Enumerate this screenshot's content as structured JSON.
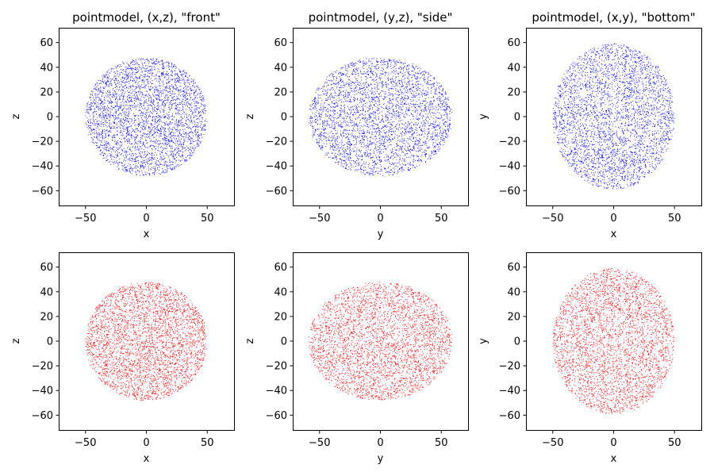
{
  "figure": {
    "background": "#ffffff"
  },
  "chart_data": [
    {
      "type": "scatter",
      "title": "pointmodel, (x,z), \"front\"",
      "xlabel": "x",
      "ylabel": "z",
      "xlim": [
        -72,
        72
      ],
      "ylim": [
        -72,
        72
      ],
      "xticks": [
        -50,
        0,
        50
      ],
      "yticks": [
        -60,
        -40,
        -20,
        0,
        20,
        40,
        60
      ],
      "grid": false,
      "color": "#0000ff",
      "point_cloud": {
        "center": [
          0,
          0
        ],
        "radius_x": 50,
        "radius_y": 48,
        "points": 3500,
        "seed": 11
      }
    },
    {
      "type": "scatter",
      "title": "pointmodel, (y,z), \"side\"",
      "xlabel": "y",
      "ylabel": "z",
      "xlim": [
        -72,
        72
      ],
      "ylim": [
        -72,
        72
      ],
      "xticks": [
        -50,
        0,
        50
      ],
      "yticks": [
        -60,
        -40,
        -20,
        0,
        20,
        40,
        60
      ],
      "grid": false,
      "color": "#0000ff",
      "point_cloud": {
        "center": [
          0,
          0
        ],
        "radius_x": 59,
        "radius_y": 48,
        "points": 3500,
        "seed": 23
      }
    },
    {
      "type": "scatter",
      "title": "pointmodel, (x,y), \"bottom\"",
      "xlabel": "x",
      "ylabel": "y",
      "xlim": [
        -72,
        72
      ],
      "ylim": [
        -72,
        72
      ],
      "xticks": [
        -50,
        0,
        50
      ],
      "yticks": [
        -60,
        -40,
        -20,
        0,
        20,
        40,
        60
      ],
      "grid": false,
      "color": "#0000ff",
      "point_cloud": {
        "center": [
          0,
          0
        ],
        "radius_x": 50,
        "radius_y": 59,
        "points": 3500,
        "seed": 37
      }
    },
    {
      "type": "scatter",
      "title": "",
      "xlabel": "x",
      "ylabel": "z",
      "xlim": [
        -72,
        72
      ],
      "ylim": [
        -72,
        72
      ],
      "xticks": [
        -50,
        0,
        50
      ],
      "yticks": [
        -60,
        -40,
        -20,
        0,
        20,
        40,
        60
      ],
      "grid": false,
      "color": "#ff0000",
      "point_cloud": {
        "center": [
          0,
          0
        ],
        "radius_x": 50,
        "radius_y": 48,
        "points": 3500,
        "seed": 51
      }
    },
    {
      "type": "scatter",
      "title": "",
      "xlabel": "y",
      "ylabel": "z",
      "xlim": [
        -72,
        72
      ],
      "ylim": [
        -72,
        72
      ],
      "xticks": [
        -50,
        0,
        50
      ],
      "yticks": [
        -60,
        -40,
        -20,
        0,
        20,
        40,
        60
      ],
      "grid": false,
      "color": "#ff0000",
      "point_cloud": {
        "center": [
          0,
          0
        ],
        "radius_x": 59,
        "radius_y": 48,
        "points": 3500,
        "seed": 67
      }
    },
    {
      "type": "scatter",
      "title": "",
      "xlabel": "x",
      "ylabel": "y",
      "xlim": [
        -72,
        72
      ],
      "ylim": [
        -72,
        72
      ],
      "xticks": [
        -50,
        0,
        50
      ],
      "yticks": [
        -60,
        -40,
        -20,
        0,
        20,
        40,
        60
      ],
      "grid": false,
      "color": "#ff0000",
      "point_cloud": {
        "center": [
          0,
          0
        ],
        "radius_x": 50,
        "radius_y": 59,
        "points": 3500,
        "seed": 79
      }
    }
  ]
}
